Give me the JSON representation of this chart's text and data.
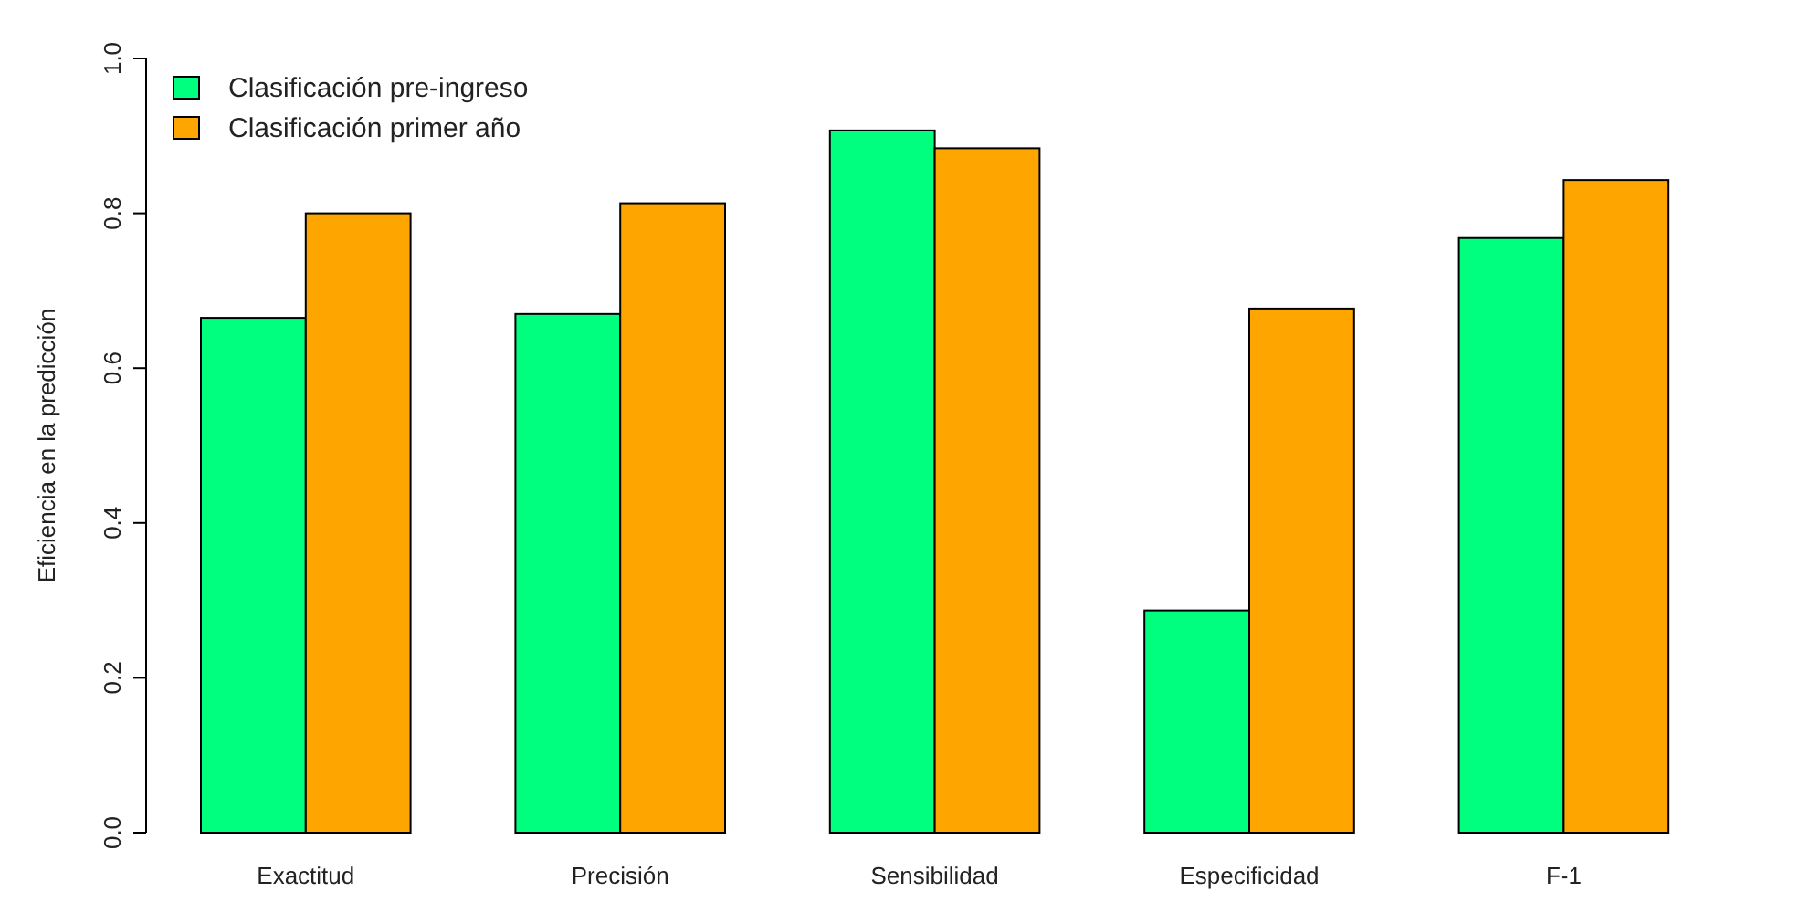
{
  "chart_data": {
    "type": "bar",
    "ylabel": "Eficiencia en la predicción",
    "categories": [
      "Exactitud",
      "Precisión",
      "Sensibilidad",
      "Especificidad",
      "F-1"
    ],
    "series": [
      {
        "name": "Clasificación pre-ingreso",
        "color": "#00ff7f",
        "values": [
          0.665,
          0.67,
          0.907,
          0.287,
          0.768
        ]
      },
      {
        "name": "Clasificación primer año",
        "color": "#ffa500",
        "values": [
          0.8,
          0.813,
          0.884,
          0.677,
          0.843
        ]
      }
    ],
    "ylim": [
      0,
      1
    ],
    "yticks": [
      {
        "value": 0,
        "label": "0.0"
      },
      {
        "value": 0.2,
        "label": "0.2"
      },
      {
        "value": 0.4,
        "label": "0.4"
      },
      {
        "value": 0.6,
        "label": "0.6"
      },
      {
        "value": 0.8,
        "label": "0.8"
      },
      {
        "value": 1,
        "label": "1.0"
      }
    ],
    "legend": "top left"
  }
}
